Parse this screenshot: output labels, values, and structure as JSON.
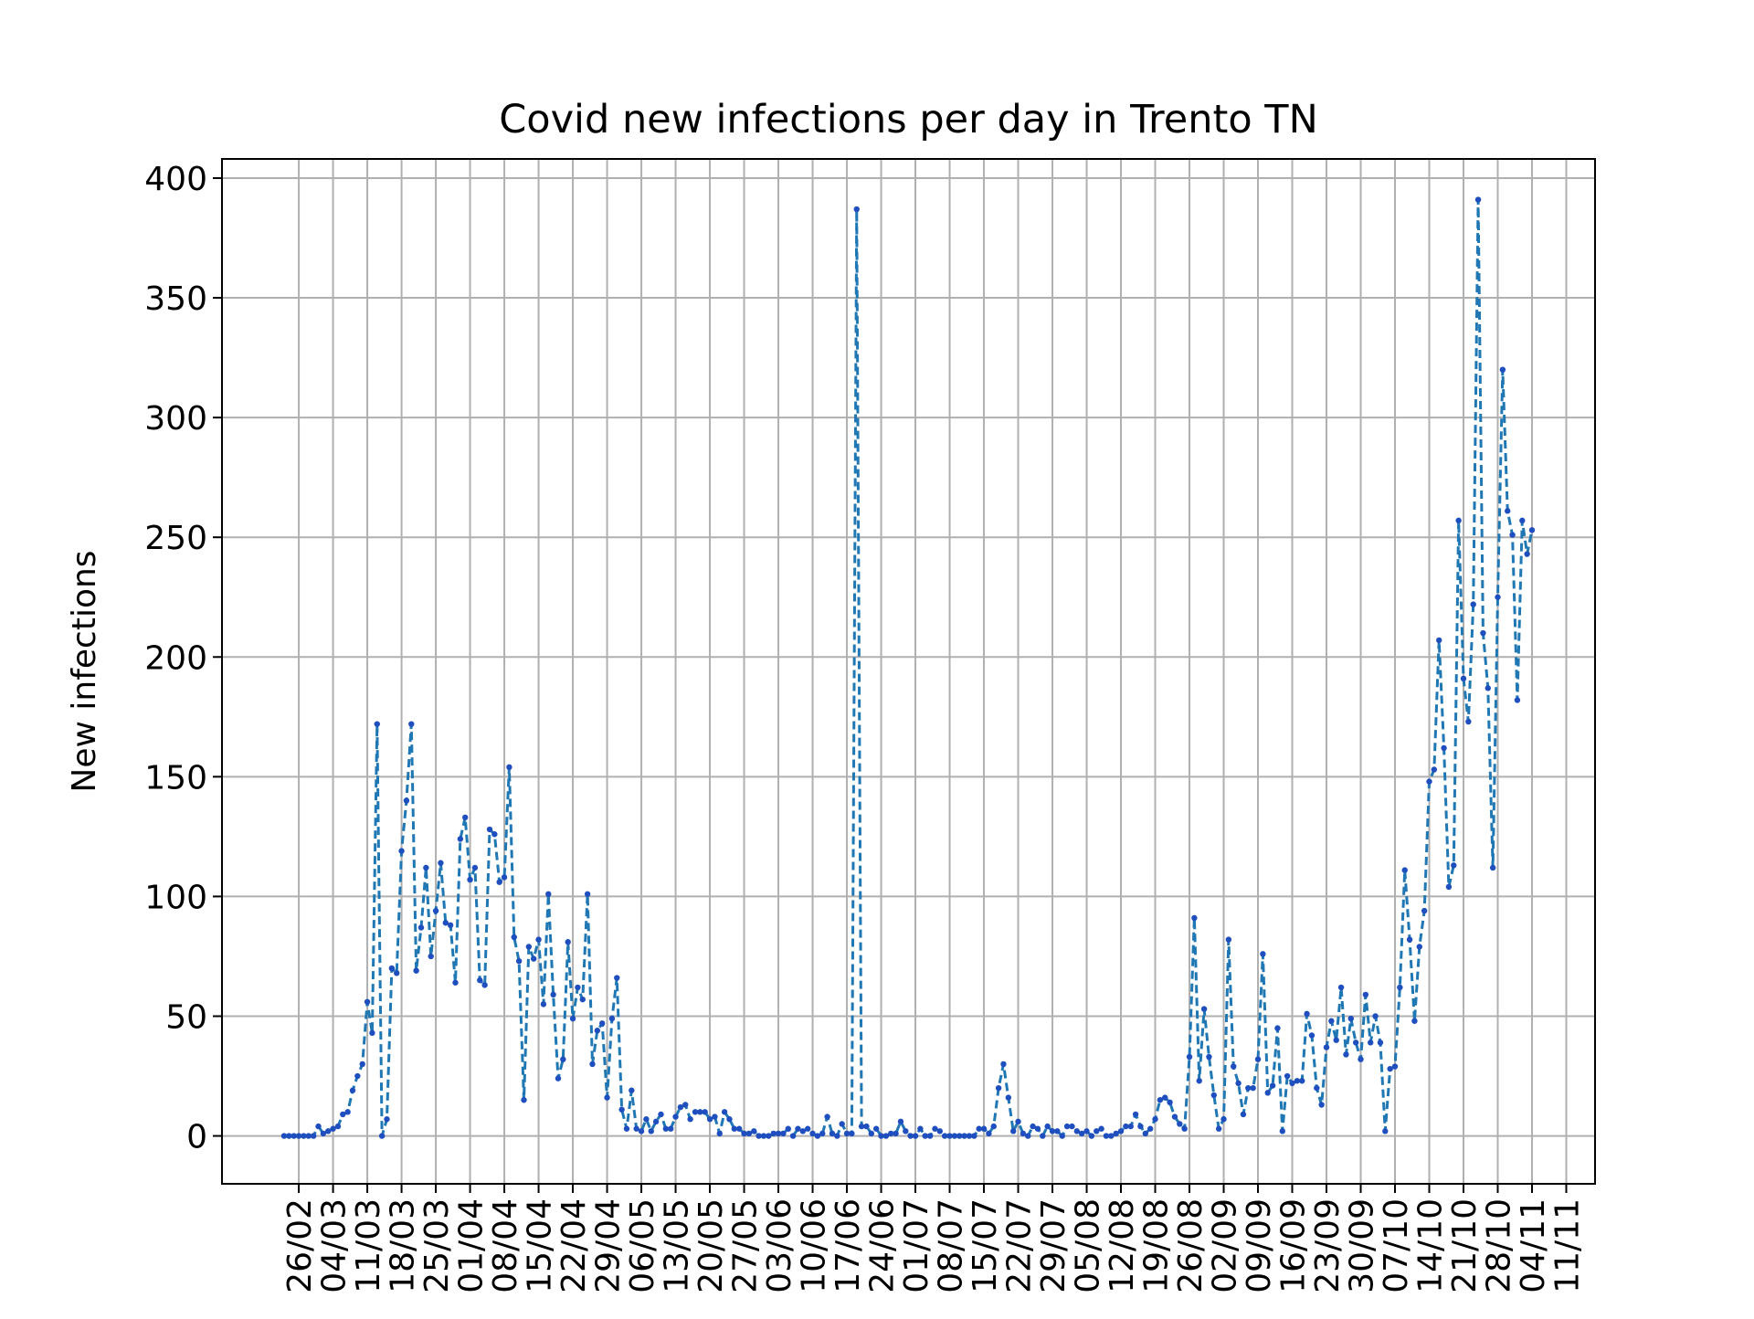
{
  "chart_data": {
    "type": "line",
    "title": "Covid new infections per day in Trento TN",
    "xlabel": "",
    "ylabel": "New infections",
    "ylim": [
      -20,
      408
    ],
    "yticks": [
      0,
      50,
      100,
      150,
      200,
      250,
      300,
      350,
      400
    ],
    "x_tick_labels": [
      "26/02",
      "04/03",
      "11/03",
      "18/03",
      "25/03",
      "01/04",
      "08/04",
      "15/04",
      "22/04",
      "29/04",
      "06/05",
      "13/05",
      "20/05",
      "27/05",
      "03/06",
      "10/06",
      "17/06",
      "24/06",
      "01/07",
      "08/07",
      "15/07",
      "22/07",
      "29/07",
      "05/08",
      "12/08",
      "19/08",
      "26/08",
      "02/09",
      "09/09",
      "16/09",
      "23/09",
      "30/09",
      "07/10",
      "14/10",
      "21/10",
      "28/10",
      "04/11",
      "11/11"
    ],
    "x_start_label": "26/02",
    "grid": true,
    "line_style": "dashed",
    "marker": "dot",
    "color": "#1f77b4",
    "marker_color": "#1f4fbf",
    "series": [
      {
        "values": [
          0,
          0,
          0,
          0,
          0,
          0,
          0,
          4,
          1,
          2,
          3,
          4,
          9,
          10,
          19,
          25,
          30,
          56,
          43,
          172,
          0,
          7,
          70,
          68,
          119,
          140,
          172,
          69,
          87,
          112,
          75,
          94,
          114,
          89,
          88,
          64,
          124,
          133,
          107,
          112,
          65,
          63,
          128,
          126,
          106,
          108,
          154,
          83,
          73,
          15,
          79,
          74,
          82,
          55,
          101,
          59,
          24,
          32,
          81,
          49,
          62,
          57,
          101,
          30,
          44,
          47,
          16,
          49,
          66,
          11,
          3,
          19,
          3,
          2,
          7,
          2,
          6,
          9,
          3,
          3,
          8,
          12,
          13,
          7,
          10,
          10,
          10,
          7,
          8,
          1,
          10,
          7,
          3,
          3,
          1,
          1,
          2,
          0,
          0,
          0,
          1,
          1,
          1,
          3,
          0,
          3,
          2,
          3,
          1,
          0,
          1,
          8,
          1,
          0,
          5,
          1,
          1,
          387,
          4,
          4,
          1,
          3,
          0,
          0,
          1,
          1,
          6,
          2,
          0,
          0,
          3,
          0,
          0,
          3,
          2,
          0,
          0,
          0,
          0,
          0,
          0,
          0,
          3,
          3,
          1,
          4,
          20,
          30,
          16,
          2,
          6,
          1,
          0,
          4,
          3,
          0,
          4,
          2,
          2,
          0,
          4,
          4,
          2,
          1,
          2,
          0,
          2,
          3,
          0,
          0,
          1,
          2,
          4,
          4,
          9,
          4,
          1,
          3,
          7,
          15,
          16,
          14,
          8,
          5,
          3,
          33,
          91,
          23,
          53,
          33,
          17,
          3,
          7,
          82,
          29,
          22,
          9,
          20,
          20,
          32,
          76,
          18,
          21,
          45,
          2,
          25,
          22,
          23,
          23,
          51,
          42,
          20,
          13,
          37,
          48,
          40,
          62,
          34,
          49,
          39,
          32,
          59,
          39,
          50,
          39,
          2,
          28,
          29,
          62,
          111,
          82,
          48,
          79,
          94,
          148,
          153,
          207,
          162,
          104,
          113,
          257,
          191,
          173,
          222,
          391,
          210,
          187,
          112,
          225,
          320,
          261,
          251,
          182,
          257,
          243,
          253
        ]
      }
    ]
  }
}
